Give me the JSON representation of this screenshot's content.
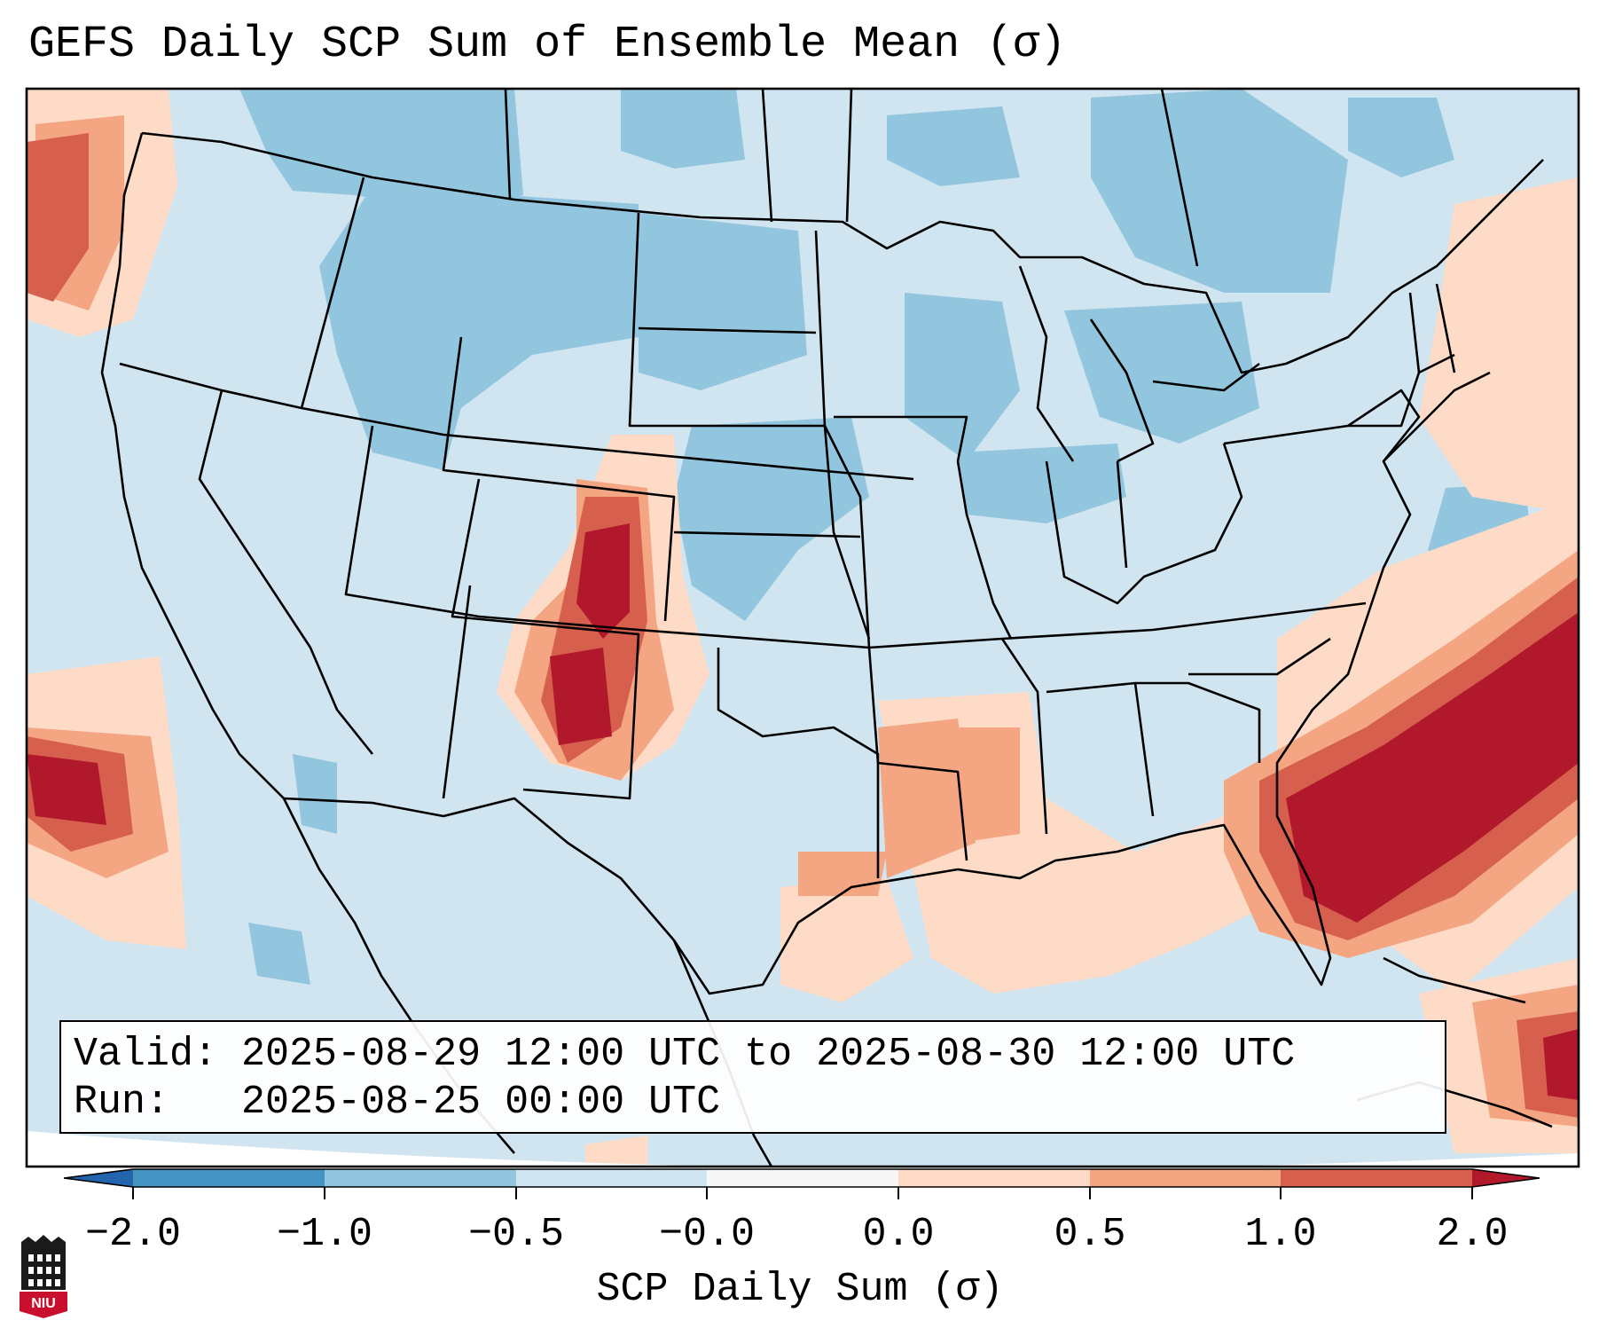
{
  "title": "GEFS Daily SCP Sum of Ensemble Mean (σ)",
  "info": {
    "valid_label": "Valid:",
    "valid_value": "2025-08-29 12:00 UTC to 2025-08-30 12:00 UTC",
    "run_label": "Run:",
    "run_value": "2025-08-25 00:00 UTC"
  },
  "colorbar": {
    "title": "SCP Daily Sum (σ)",
    "ticks": [
      "−2.0",
      "−1.0",
      "−0.5",
      "−0.0",
      "0.0",
      "0.5",
      "1.0",
      "2.0"
    ],
    "bins": [
      {
        "color": "#2166ac"
      },
      {
        "color": "#4393c3"
      },
      {
        "color": "#92c5de"
      },
      {
        "color": "#d1e5f0"
      },
      {
        "color": "#f7f7f7"
      },
      {
        "color": "#fddbc7"
      },
      {
        "color": "#f4a582"
      },
      {
        "color": "#d6604d"
      },
      {
        "color": "#b2182b"
      }
    ]
  },
  "map_colors": {
    "ocean_land_base": "#d1e5f0",
    "blue_mid": "#92c5de",
    "red_light": "#fddbc7",
    "red_mid": "#f4a582",
    "red_strong": "#d6604d",
    "red_dark": "#b2182b",
    "border": "#000000"
  },
  "logo": {
    "text": "NIU",
    "color": "#c8102e"
  }
}
